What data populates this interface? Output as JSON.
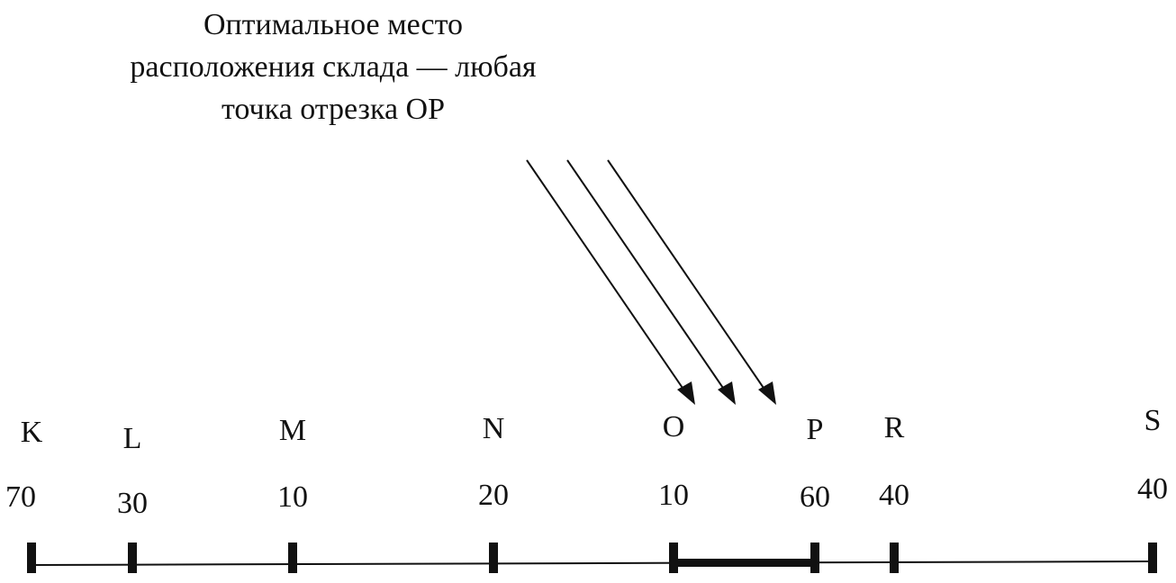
{
  "caption": [
    "Оптимальное место",
    "расположения склада — любая",
    "точка отрезка OP"
  ],
  "points": [
    {
      "label": "K",
      "value": 70
    },
    {
      "label": "L",
      "value": 30
    },
    {
      "label": "M",
      "value": 10
    },
    {
      "label": "N",
      "value": 20
    },
    {
      "label": "O",
      "value": 10
    },
    {
      "label": "P",
      "value": 60
    },
    {
      "label": "R",
      "value": 40
    },
    {
      "label": "S",
      "value": 40
    }
  ]
}
